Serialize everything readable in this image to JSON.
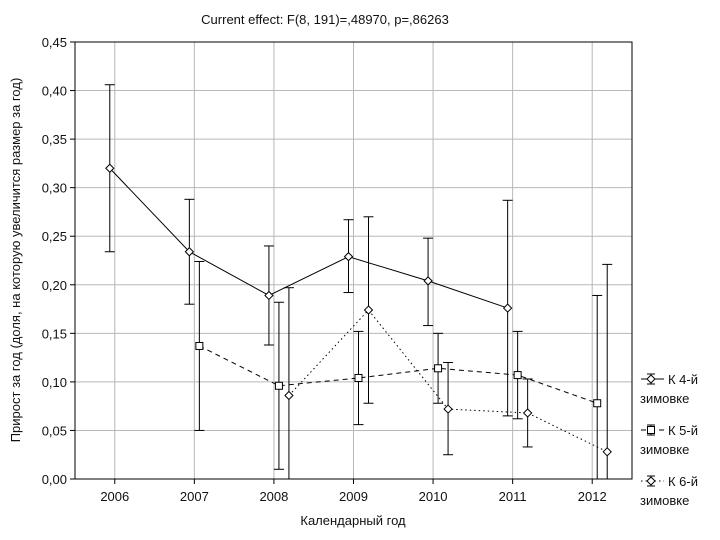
{
  "chart_data": {
    "type": "line",
    "title": "Current effect: F(8, 191)=,48970, p=,86263",
    "xlabel": "Календарный год",
    "ylabel": "Прирост за год (доля, на которую увеличится размер за год)",
    "categories": [
      "2006",
      "2007",
      "2008",
      "2009",
      "2010",
      "2011",
      "2012"
    ],
    "ylim": [
      0,
      0.45
    ],
    "yticks": [
      "0,00",
      "0,05",
      "0,10",
      "0,15",
      "0,20",
      "0,25",
      "0,30",
      "0,35",
      "0,40",
      "0,45"
    ],
    "grid": true,
    "legend_position": "right",
    "series": [
      {
        "name": "К 4-й зимовке",
        "line_style": "solid",
        "marker": "diamond",
        "points": [
          {
            "x": "2006",
            "y": 0.32,
            "lower": 0.234,
            "upper": 0.406
          },
          {
            "x": "2007",
            "y": 0.234,
            "lower": 0.18,
            "upper": 0.288
          },
          {
            "x": "2008",
            "y": 0.189,
            "lower": 0.138,
            "upper": 0.24
          },
          {
            "x": "2009",
            "y": 0.229,
            "lower": 0.192,
            "upper": 0.267
          },
          {
            "x": "2010",
            "y": 0.204,
            "lower": 0.158,
            "upper": 0.248
          },
          {
            "x": "2011",
            "y": 0.176,
            "lower": 0.065,
            "upper": 0.287
          }
        ]
      },
      {
        "name": "К 5-й зимовке",
        "line_style": "dashed",
        "marker": "square",
        "points": [
          {
            "x": "2007",
            "y": 0.137,
            "lower": 0.05,
            "upper": 0.224
          },
          {
            "x": "2008",
            "y": 0.096,
            "lower": 0.01,
            "upper": 0.182
          },
          {
            "x": "2009",
            "y": 0.104,
            "lower": 0.056,
            "upper": 0.152
          },
          {
            "x": "2010",
            "y": 0.114,
            "lower": 0.078,
            "upper": 0.15
          },
          {
            "x": "2011",
            "y": 0.107,
            "lower": 0.062,
            "upper": 0.152
          },
          {
            "x": "2012",
            "y": 0.078,
            "lower": -0.033,
            "upper": 0.189
          }
        ]
      },
      {
        "name": "К 6-й зимовке",
        "line_style": "dotted",
        "marker": "diamond",
        "points": [
          {
            "x": "2008",
            "y": 0.086,
            "lower": -0.025,
            "upper": 0.197
          },
          {
            "x": "2009",
            "y": 0.174,
            "lower": 0.078,
            "upper": 0.27
          },
          {
            "x": "2010",
            "y": 0.072,
            "lower": 0.025,
            "upper": 0.12
          },
          {
            "x": "2011",
            "y": 0.068,
            "lower": 0.033,
            "upper": 0.103
          },
          {
            "x": "2012",
            "y": 0.028,
            "lower": -0.165,
            "upper": 0.221
          }
        ]
      }
    ],
    "legend": [
      {
        "line1": "К 4-й",
        "line2": "зимовке",
        "marker": "diamond",
        "line_style": "solid"
      },
      {
        "line1": "К 5-й",
        "line2": "зимовке",
        "marker": "square",
        "line_style": "dashed"
      },
      {
        "line1": "К 6-й",
        "line2": "зимовке",
        "marker": "diamond",
        "line_style": "dotted"
      }
    ]
  }
}
